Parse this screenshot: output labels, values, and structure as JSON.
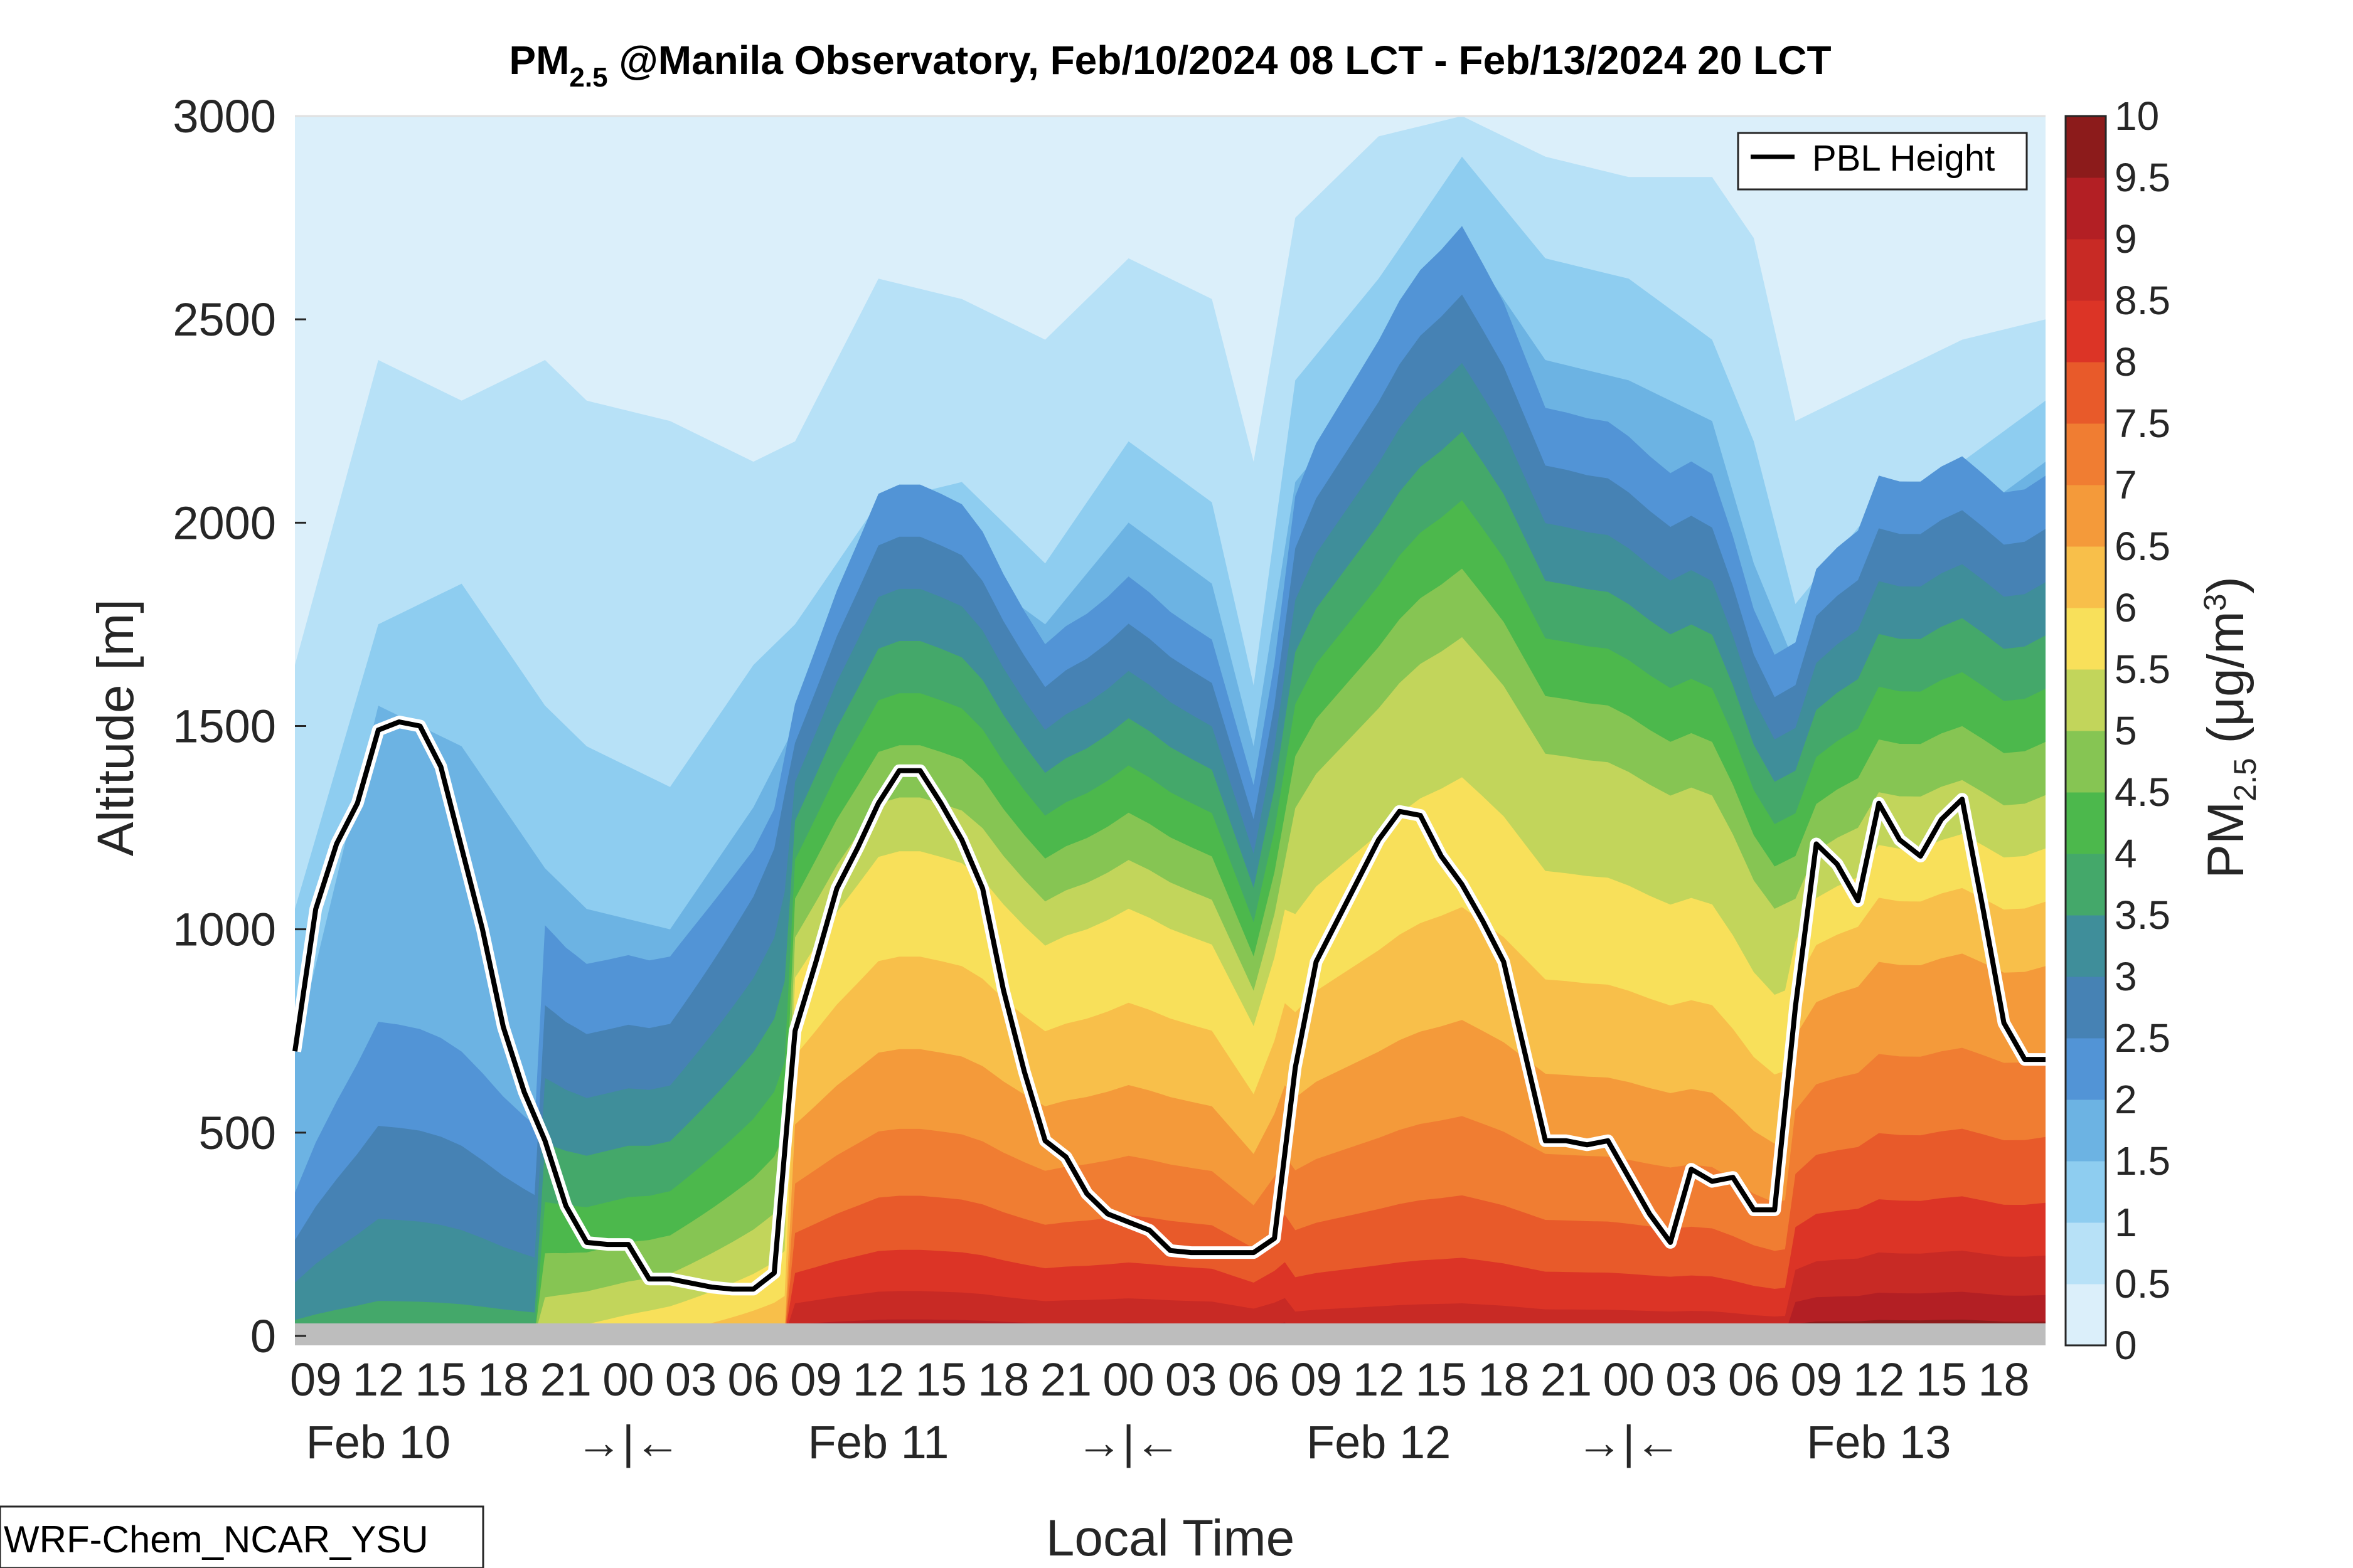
{
  "chart_data": {
    "type": "contour",
    "title": {
      "prefix": "PM",
      "subscript": "2.5",
      "rest": " @Manila Observatory, Feb/10/2024 08 LCT - Feb/13/2024 20 LCT"
    },
    "xlabel": "Local Time",
    "ylabel": "Altitude [m]",
    "ylim": [
      0,
      3000
    ],
    "yticks": [
      "0",
      "500",
      "1000",
      "1500",
      "2000",
      "2500",
      "3000"
    ],
    "xlim_hours": [
      8,
      92
    ],
    "xticks": [
      {
        "h": 9,
        "label": "09"
      },
      {
        "h": 12,
        "label": "12"
      },
      {
        "h": 15,
        "label": "15"
      },
      {
        "h": 18,
        "label": "18"
      },
      {
        "h": 21,
        "label": "21"
      },
      {
        "h": 24,
        "label": "00"
      },
      {
        "h": 27,
        "label": "03"
      },
      {
        "h": 30,
        "label": "06"
      },
      {
        "h": 33,
        "label": "09"
      },
      {
        "h": 36,
        "label": "12"
      },
      {
        "h": 39,
        "label": "15"
      },
      {
        "h": 42,
        "label": "18"
      },
      {
        "h": 45,
        "label": "21"
      },
      {
        "h": 48,
        "label": "00"
      },
      {
        "h": 51,
        "label": "03"
      },
      {
        "h": 54,
        "label": "06"
      },
      {
        "h": 57,
        "label": "09"
      },
      {
        "h": 60,
        "label": "12"
      },
      {
        "h": 63,
        "label": "15"
      },
      {
        "h": 66,
        "label": "18"
      },
      {
        "h": 69,
        "label": "21"
      },
      {
        "h": 72,
        "label": "00"
      },
      {
        "h": 75,
        "label": "03"
      },
      {
        "h": 78,
        "label": "06"
      },
      {
        "h": 81,
        "label": "09"
      },
      {
        "h": 84,
        "label": "12"
      },
      {
        "h": 87,
        "label": "15"
      },
      {
        "h": 90,
        "label": "18"
      }
    ],
    "day_labels": [
      {
        "h": 12,
        "label": "Feb 10"
      },
      {
        "h": 36,
        "label": "Feb 11"
      },
      {
        "h": 60,
        "label": "Feb 12"
      },
      {
        "h": 84,
        "label": "Feb 13"
      }
    ],
    "day_separators": [
      {
        "h": 24,
        "label": "→|←"
      },
      {
        "h": 48,
        "label": "→|←"
      },
      {
        "h": 72,
        "label": "→|←"
      }
    ],
    "colorbar": {
      "label": {
        "prefix": "PM",
        "subscript": "2.5",
        "rest": " (μg/m",
        "sup": "3",
        "close": ")"
      },
      "levels": [
        0,
        0.5,
        1,
        1.5,
        2,
        2.5,
        3,
        3.5,
        4,
        4.5,
        5,
        5.5,
        6,
        6.5,
        7,
        7.5,
        8,
        8.5,
        9,
        9.5,
        10
      ],
      "tick_labels": [
        "0",
        "0.5",
        "1",
        "1.5",
        "2",
        "2.5",
        "3",
        "3.5",
        "4",
        "4.5",
        "5",
        "5.5",
        "6",
        "6.5",
        "7",
        "7.5",
        "8",
        "8.5",
        "9",
        "9.5",
        "10"
      ],
      "colors": [
        "#ffffff",
        "#dbeffa",
        "#b7e1f7",
        "#8ecdf0",
        "#6cb3e3",
        "#5294d6",
        "#4682b4",
        "#3f8e9a",
        "#44a86a",
        "#4cb84c",
        "#86c553",
        "#c2d55b",
        "#f8e05a",
        "#f8bf4a",
        "#f49a3a",
        "#f07d32",
        "#e85a2a",
        "#dc3426",
        "#c82a25",
        "#b31f24",
        "#8c1b1b"
      ]
    },
    "ground_color": "#bdbdbd",
    "legend": {
      "entries": [
        "PBL Height"
      ],
      "location": "top-right"
    },
    "series": [
      {
        "name": "PBL Height",
        "type": "line",
        "color": "#000000",
        "x": [
          8,
          9,
          10,
          11,
          12,
          13,
          14,
          15,
          16,
          17,
          18,
          19,
          20,
          21,
          22,
          23,
          24,
          25,
          26,
          27,
          28,
          29,
          30,
          31,
          32,
          33,
          34,
          35,
          36,
          37,
          38,
          39,
          40,
          41,
          42,
          43,
          44,
          45,
          46,
          47,
          48,
          49,
          50,
          51,
          52,
          53,
          54,
          55,
          56,
          57,
          58,
          59,
          60,
          61,
          62,
          63,
          64,
          65,
          66,
          67,
          68,
          69,
          70,
          71,
          72,
          73,
          74,
          75,
          76,
          77,
          78,
          79,
          80,
          81,
          82,
          83,
          84,
          85,
          86,
          87,
          88,
          89,
          90,
          91,
          92
        ],
        "y": [
          700,
          1050,
          1210,
          1310,
          1490,
          1510,
          1500,
          1400,
          1200,
          1000,
          760,
          600,
          480,
          320,
          230,
          225,
          225,
          140,
          140,
          130,
          120,
          115,
          115,
          155,
          750,
          920,
          1100,
          1200,
          1310,
          1390,
          1390,
          1310,
          1220,
          1100,
          850,
          650,
          480,
          440,
          350,
          300,
          280,
          260,
          210,
          205,
          205,
          205,
          205,
          240,
          660,
          920,
          1020,
          1120,
          1220,
          1290,
          1280,
          1180,
          1110,
          1020,
          920,
          700,
          480,
          480,
          470,
          480,
          390,
          300,
          230,
          410,
          380,
          390,
          310,
          310,
          810,
          1210,
          1160,
          1070,
          1310,
          1220,
          1180,
          1270,
          1320,
          1050,
          770,
          680,
          680
        ]
      }
    ],
    "contour_profiles": {
      "description_hours": [
        8,
        12,
        16,
        20,
        22,
        26,
        30,
        32,
        36,
        40,
        44,
        48,
        52,
        54,
        56,
        60,
        64,
        68,
        72,
        76,
        78,
        80,
        84,
        88,
        92
      ],
      "boundaries_m": [
        [
          2950,
          3000,
          3000,
          2650,
          2600,
          2650,
          2200,
          2500,
          2800,
          2850,
          2700,
          2750,
          2750,
          2700,
          3000,
          3000,
          3000,
          3000,
          2950,
          3000,
          2850,
          2600,
          2650,
          2700,
          2750
        ],
        [
          1650,
          2400,
          2300,
          2400,
          2300,
          2250,
          2150,
          2200,
          2600,
          2550,
          2450,
          2650,
          2550,
          2150,
          2750,
          2950,
          3000,
          2900,
          2850,
          2850,
          2700,
          2250,
          2350,
          2450,
          2500
        ],
        [
          1050,
          1750,
          1850,
          1550,
          1450,
          1350,
          1650,
          1750,
          2050,
          2100,
          1900,
          2200,
          2050,
          1600,
          2350,
          2600,
          2900,
          2650,
          2600,
          2450,
          2200,
          1800,
          2050,
          2150,
          2300
        ],
        [
          700,
          1550,
          1450,
          1150,
          1050,
          1000,
          1300,
          1500,
          1900,
          1900,
          1750,
          2000,
          1850,
          1450,
          2100,
          2350,
          2700,
          2400,
          2350,
          2250,
          1900,
          1650,
          1950,
          2000,
          2150
        ]
      ]
    }
  },
  "model_label": "WRF-Chem_NCAR_YSU"
}
